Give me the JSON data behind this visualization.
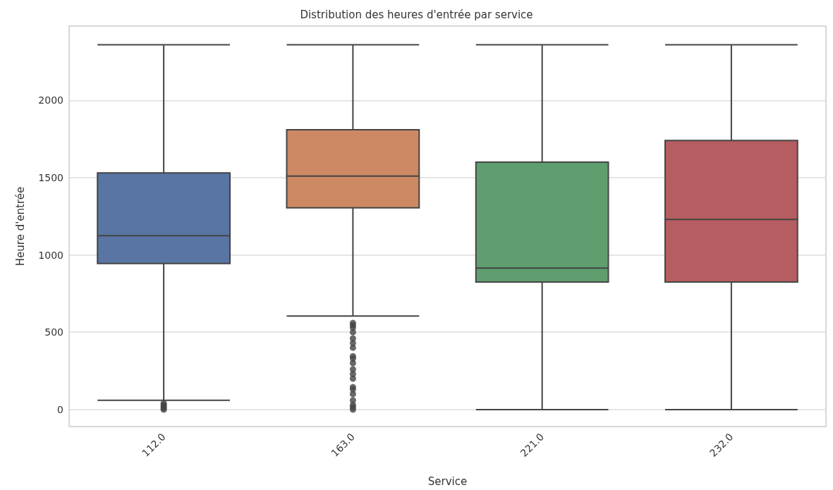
{
  "chart_data": {
    "type": "box",
    "title": "Distribution des heures d'entrée par service",
    "xlabel": "Service",
    "ylabel": "Heure d'entrée",
    "categories": [
      "112.0",
      "163.0",
      "221.0",
      "232.0"
    ],
    "colors": [
      "#5875a4",
      "#cc8963",
      "#5f9e6e",
      "#b55d60"
    ],
    "boxes": [
      {
        "low": 60,
        "q1": 945,
        "median": 1125,
        "q3": 1530,
        "high": 2359,
        "outliers": [
          0,
          10,
          20,
          30,
          40
        ]
      },
      {
        "low": 605,
        "q1": 1305,
        "median": 1510,
        "q3": 1810,
        "high": 2359,
        "outliers": [
          0,
          15,
          30,
          60,
          100,
          130,
          145,
          200,
          230,
          260,
          300,
          330,
          345,
          400,
          430,
          460,
          500,
          530,
          545,
          560
        ]
      },
      {
        "low": 0,
        "q1": 825,
        "median": 915,
        "q3": 1600,
        "high": 2359
      },
      {
        "low": 0,
        "q1": 825,
        "median": 1230,
        "q3": 1740,
        "high": 2359
      }
    ],
    "ylim": [
      -110,
      2480
    ],
    "yticks": [
      0,
      500,
      1000,
      1500,
      2000
    ],
    "grid": "y"
  }
}
